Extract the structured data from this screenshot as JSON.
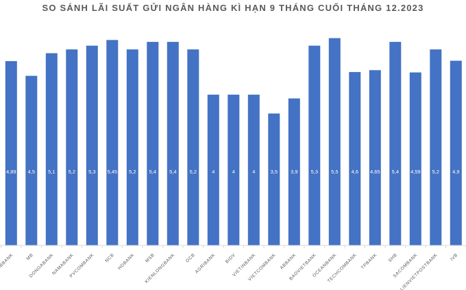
{
  "chart_data": {
    "type": "bar",
    "title": "SO SÁNH LÃI SUẤT GỬI NGÂN HÀNG KÌ HẠN 9 THÁNG CUỐI THÁNG 12.2023",
    "xlabel": "",
    "ylabel": "",
    "ylim": [
      0,
      6
    ],
    "grid": false,
    "categories": [
      "ABBANK",
      "MB",
      "DONGABANK",
      "NAMABANK",
      "PVCOMBANK",
      "NCB",
      "HDBANK",
      "MSB",
      "KIENLONGBANK",
      "OCB",
      "AGRIBANK",
      "BIDV",
      "VIETINBANK",
      "VIETCOMBANK",
      "ABBANK",
      "BAOVIETBANK",
      "OCEANBANK",
      "TECHCOMBANK",
      "TPBANK",
      "SHB",
      "SACOMBANK",
      "LIENVIETPOSTBANK",
      "IVB"
    ],
    "values": [
      4.89,
      4.5,
      5.1,
      5.2,
      5.3,
      5.45,
      5.2,
      5.4,
      5.4,
      5.2,
      4,
      4,
      4,
      3.5,
      3.9,
      5.3,
      5.5,
      4.6,
      4.65,
      5.4,
      4.59,
      5.2,
      4.9
    ],
    "data_labels": [
      "4,89",
      "4,5",
      "5,1",
      "5,2",
      "5,3",
      "5,45",
      "5,2",
      "5,4",
      "5,4",
      "5,2",
      "4",
      "4",
      "4",
      "3,5",
      "3,9",
      "5,3",
      "5,5",
      "4,6",
      "4,65",
      "5,4",
      "4,59",
      "5,2",
      "4,9"
    ],
    "colors": {
      "bar": "#4472C4",
      "axis": "#D9D9D9",
      "label": "#595959",
      "data_label": "#FFFFFF"
    }
  }
}
